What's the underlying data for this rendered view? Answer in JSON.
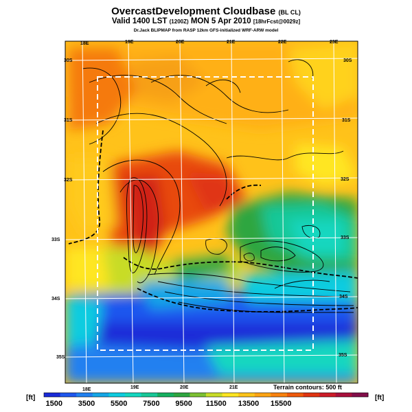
{
  "header": {
    "title": "OvercastDevelopment Cloudbase",
    "title_suffix": "(BL CL)",
    "valid_main": "Valid 1400 LST",
    "valid_utc": "(1200Z)",
    "valid_date": "MON 5 Apr 2010",
    "valid_forecast": "[18hrFcst@0029z]",
    "credit": "Dr.Jack BLIPMAP from RASP 12km GFS-initialized WRF-ARW model"
  },
  "map": {
    "lon_labels_top": [
      "18E",
      "19E",
      "20E",
      "21E",
      "22E",
      "23E"
    ],
    "lon_labels_bottom": [
      "18E",
      "19E",
      "20E",
      "21E"
    ],
    "lat_labels_left": [
      "30S",
      "31S",
      "32S",
      "33S",
      "34S",
      "35S"
    ],
    "lat_labels_right": [
      "30S",
      "31S",
      "32S",
      "33S",
      "34S",
      "35S"
    ],
    "terrain_note": "Terrain contours: 500 ft"
  },
  "colorbar": {
    "unit_left": "[ft]",
    "unit_right": "[ft]",
    "tick_labels": [
      "1500",
      "3500",
      "5500",
      "7500",
      "9500",
      "11500",
      "13500",
      "15500"
    ],
    "colors": [
      "#1a2ad8",
      "#1f57ee",
      "#2080f0",
      "#14a6e6",
      "#0ecce0",
      "#14d7c0",
      "#18c898",
      "#16b060",
      "#2ea640",
      "#7cc032",
      "#c8dc28",
      "#ffe622",
      "#ffc41a",
      "#ffa414",
      "#f9820f",
      "#ef5a0c",
      "#e03412",
      "#cc1c28",
      "#a8103c",
      "#820e4a"
    ]
  }
}
